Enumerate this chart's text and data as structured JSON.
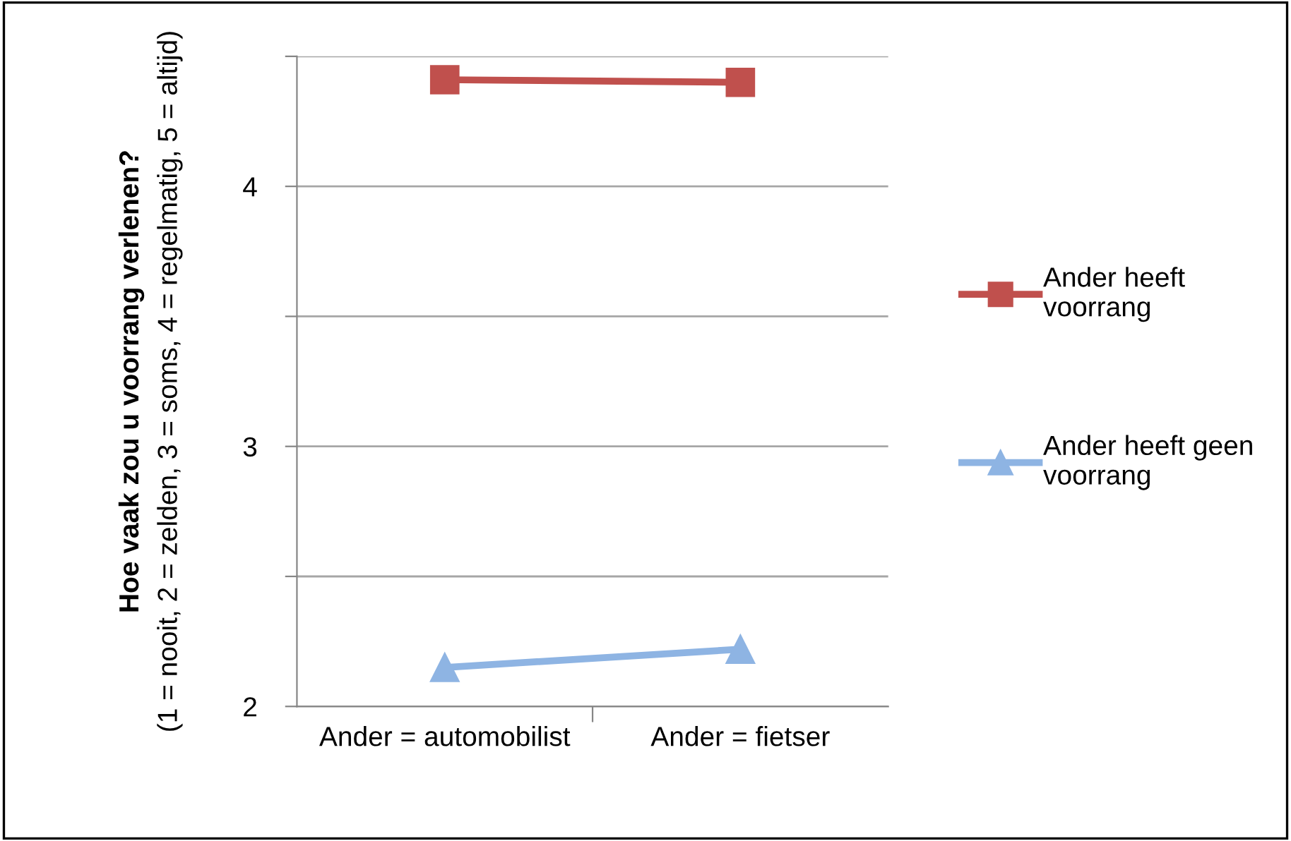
{
  "chart_data": {
    "type": "line",
    "ylabel": "Hoe vaak zou u voorrang verlenen?\n(1 = nooit, 2 = zelden, 3 = soms, 4 = regelmatig, 5 = altijd)",
    "categories": [
      "Ander = automobilist",
      "Ander = fietser"
    ],
    "series": [
      {
        "name": "Ander heeft voorrang",
        "color": "#c0504d",
        "marker": "square",
        "values": [
          4.41,
          4.4
        ]
      },
      {
        "name": "Ander heeft geen voorrang",
        "color": "#8eb4e3",
        "marker": "triangle",
        "values": [
          2.15,
          2.22
        ]
      }
    ],
    "ylim": [
      2,
      4.5
    ],
    "yticks": [
      2,
      {
        "value": 2.5,
        "label": null
      },
      3,
      {
        "value": 3.5,
        "label": null
      },
      4,
      {
        "value": 4.5,
        "label": null
      }
    ],
    "grid": "y",
    "legend": "right"
  }
}
